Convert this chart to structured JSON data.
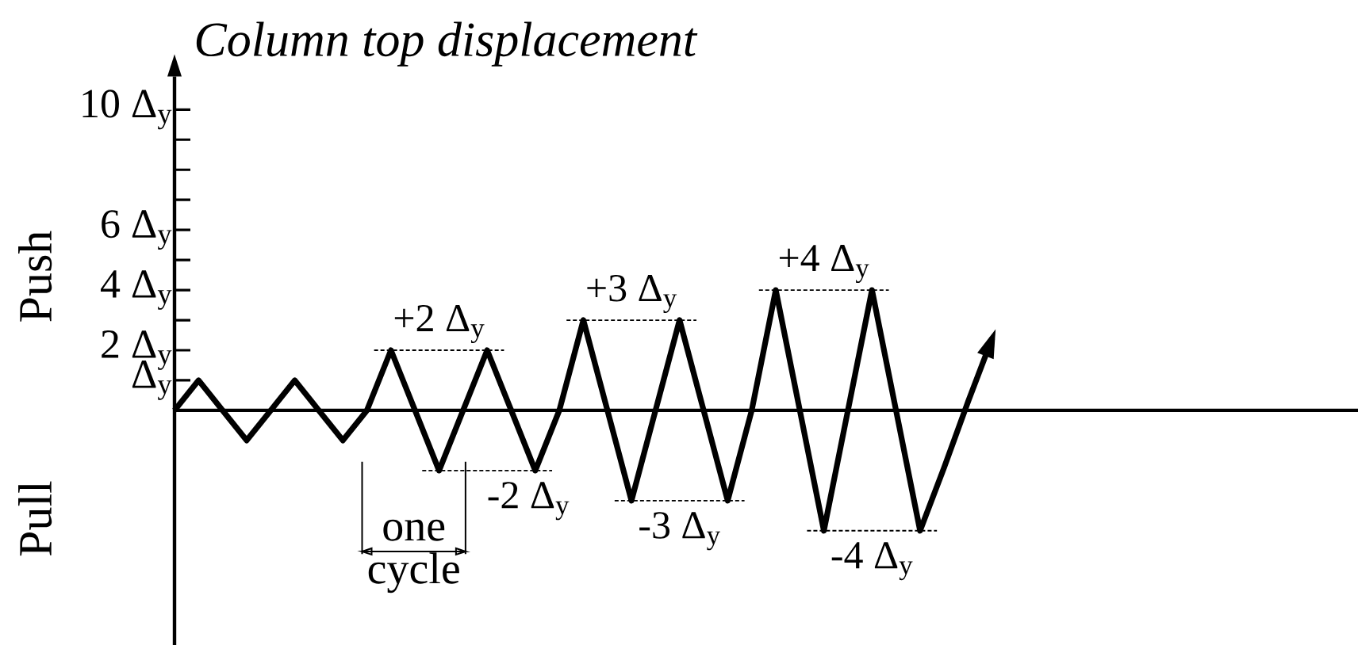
{
  "chart_data": {
    "type": "line",
    "ylabel": "Column top displacement",
    "categories": [
      null,
      null,
      null,
      null,
      null,
      null,
      null,
      null,
      null,
      null,
      null,
      null,
      null,
      null,
      null,
      null,
      null,
      null,
      null,
      null,
      null,
      null,
      null,
      null,
      null,
      null,
      null,
      null,
      null,
      null,
      null,
      null,
      null,
      null,
      null
    ],
    "series": [
      {
        "color": "#000000",
        "values": [
          0,
          1,
          0,
          -1,
          0,
          1,
          0,
          -1,
          0,
          2,
          0,
          -2,
          0,
          2,
          0,
          -2,
          0,
          3,
          0,
          -3,
          0,
          3,
          0,
          -3,
          0,
          4,
          0,
          -4,
          0,
          4,
          0,
          -4,
          -1.9,
          0.3,
          2.4
        ]
      }
    ],
    "ylim": [
      -7.8,
      11.1
    ],
    "yticks": [
      {
        "value": 1,
        "label": "Δ$_{y}$"
      },
      {
        "value": 2,
        "label": "2 Δ$_{y}$"
      },
      {
        "value": 3,
        "label": null
      },
      {
        "value": 4,
        "label": "4 Δ$_{y}$"
      },
      {
        "value": 5,
        "label": null
      },
      {
        "value": 6,
        "label": "6 Δ$_{y}$"
      },
      {
        "value": 7,
        "label": null
      },
      {
        "value": 8,
        "label": null
      },
      {
        "value": 9,
        "label": null
      },
      {
        "value": 10,
        "label": "10 Δ$_{y}$"
      }
    ],
    "tick_labels": "y",
    "marker": "none",
    "line_style": "solid",
    "ref_lines": [
      {
        "axis": "y",
        "value": 2,
        "label": "+2 Δ$_{y}$",
        "line_style": "dotted"
      },
      {
        "axis": "y",
        "value": -2,
        "label": "-2 Δ$_{y}$",
        "line_style": "dotted"
      },
      {
        "axis": "y",
        "value": 3,
        "label": "+3 Δ$_{y}$",
        "line_style": "dotted"
      },
      {
        "axis": "y",
        "value": -3,
        "label": "-3 Δ$_{y}$",
        "line_style": "dotted"
      },
      {
        "axis": "y",
        "value": 4,
        "label": "+4 Δ$_{y}$",
        "line_style": "dotted"
      },
      {
        "axis": "y",
        "value": -4,
        "label": "-4 Δ$_{y}$",
        "line_style": "dotted"
      }
    ],
    "annotations": [
      "Push",
      "Pull",
      "one cycle"
    ]
  }
}
